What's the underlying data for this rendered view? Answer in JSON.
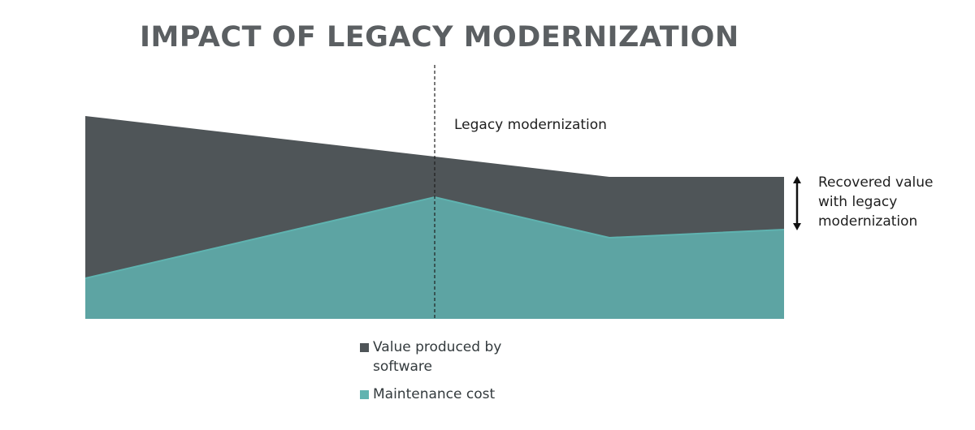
{
  "chart_data": {
    "type": "area",
    "title": "IMPACT OF LEGACY MODERNIZATION",
    "xlabel": "",
    "ylabel": "",
    "x": [
      0,
      0.5,
      0.75,
      1
    ],
    "xlim": [
      0,
      1
    ],
    "ylim": [
      0,
      1
    ],
    "series": [
      {
        "name": "Value produced by software",
        "color": "#4f5558",
        "values": [
          1.0,
          0.8,
          0.7,
          0.7
        ]
      },
      {
        "name": "Maintenance cost",
        "color": "#5fb3b0",
        "values": [
          0.2,
          0.6,
          0.4,
          0.44
        ]
      }
    ],
    "annotations": [
      {
        "type": "vertical-line",
        "x": 0.5,
        "style": "dashed",
        "label": "Legacy modernization"
      },
      {
        "type": "double-arrow",
        "x": 1,
        "from": 0.44,
        "to": 0.7,
        "label_lines": [
          "Recovered value",
          "with legacy",
          "modernization"
        ]
      }
    ],
    "grid": false,
    "legend_position": "bottom"
  },
  "legend": {
    "items": [
      {
        "label_lines": [
          "Value produced by",
          "software"
        ],
        "color": "#4f5558"
      },
      {
        "label_lines": [
          "Maintenance cost"
        ],
        "color": "#5fb3b0"
      }
    ]
  }
}
